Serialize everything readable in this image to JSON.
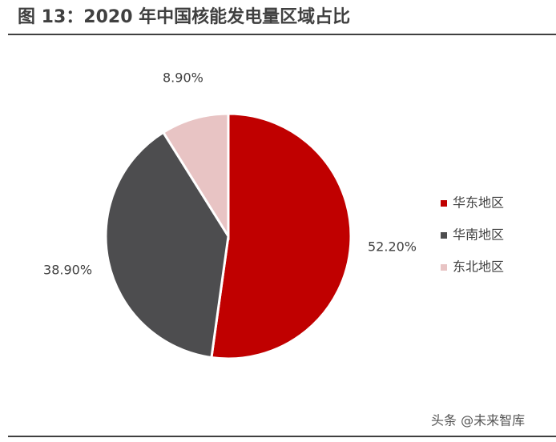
{
  "chart_data": {
    "type": "pie",
    "title": "图 13：2020 年中国核能发电量区域占比",
    "categories": [
      "华东地区",
      "华南地区",
      "东北地区"
    ],
    "values": [
      52.2,
      38.9,
      8.9
    ],
    "value_labels": [
      "52.20%",
      "38.90%",
      "8.90%"
    ],
    "colors": [
      "#c00000",
      "#4d4d4f",
      "#e8c4c4"
    ],
    "legend": "right"
  },
  "watermark": "头条 @未来智库"
}
